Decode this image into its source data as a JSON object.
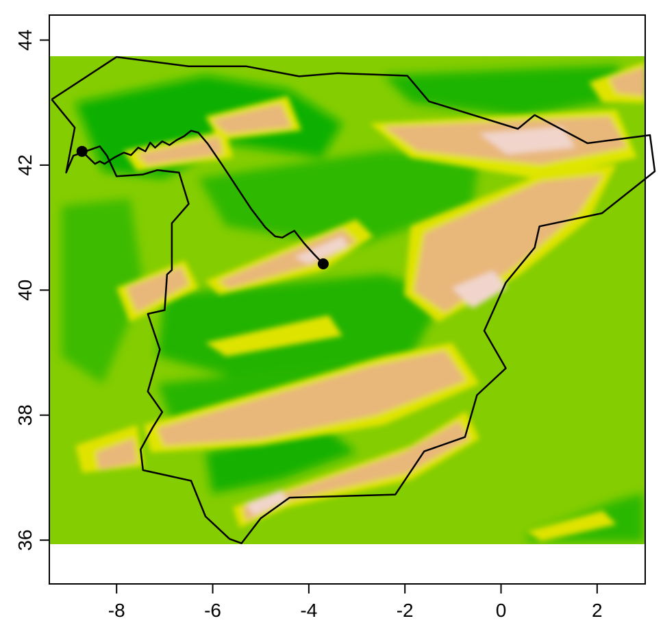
{
  "map": {
    "type": "raster-elevation-map",
    "colormap": "terrain",
    "colors": {
      "low_green": "#00a600",
      "mid_green": "#7cc600",
      "yellow": "#e6e600",
      "tan": "#e8b77a",
      "pink": "#f0c9c0",
      "white": "#f2f2f2",
      "sea": "#84cd00",
      "border": "#000000",
      "path": "#000000"
    },
    "x_axis": {
      "ticks": [
        -8,
        -6,
        -4,
        -2,
        0,
        2
      ],
      "tick_labels": [
        "-8",
        "-6",
        "-4",
        "-2",
        "0",
        "2"
      ],
      "range": [
        -9.4,
        3.0
      ]
    },
    "y_axis": {
      "ticks": [
        36,
        38,
        40,
        42,
        44
      ],
      "tick_labels": [
        "36",
        "38",
        "40",
        "42",
        "44"
      ],
      "range": [
        35.3,
        44.4
      ]
    },
    "raster_extent": {
      "lon": [
        -9.4,
        3.0
      ],
      "lat": [
        35.93,
        43.73
      ]
    },
    "points": [
      {
        "lon": -8.72,
        "lat": 42.22
      },
      {
        "lon": -3.7,
        "lat": 40.42
      }
    ],
    "route": [
      [
        -8.72,
        42.22
      ],
      [
        -8.45,
        42.02
      ],
      [
        -8.35,
        42.06
      ],
      [
        -8.25,
        42.02
      ],
      [
        -8.05,
        42.12
      ],
      [
        -7.85,
        42.2
      ],
      [
        -7.7,
        42.16
      ],
      [
        -7.55,
        42.28
      ],
      [
        -7.4,
        42.22
      ],
      [
        -7.3,
        42.36
      ],
      [
        -7.2,
        42.28
      ],
      [
        -7.05,
        42.38
      ],
      [
        -6.9,
        42.32
      ],
      [
        -6.75,
        42.4
      ],
      [
        -6.6,
        42.46
      ],
      [
        -6.45,
        42.55
      ],
      [
        -6.3,
        42.52
      ],
      [
        -6.1,
        42.34
      ],
      [
        -5.8,
        42.0
      ],
      [
        -5.5,
        41.65
      ],
      [
        -5.2,
        41.3
      ],
      [
        -4.9,
        41.0
      ],
      [
        -4.7,
        40.86
      ],
      [
        -4.55,
        40.84
      ],
      [
        -4.42,
        40.9
      ],
      [
        -4.3,
        40.95
      ],
      [
        -4.1,
        40.75
      ],
      [
        -3.9,
        40.58
      ],
      [
        -3.7,
        40.42
      ]
    ],
    "border_spain": [
      [
        -9.35,
        43.05
      ],
      [
        -8.0,
        43.73
      ],
      [
        -6.5,
        43.58
      ],
      [
        -5.3,
        43.58
      ],
      [
        -4.2,
        43.42
      ],
      [
        -3.4,
        43.47
      ],
      [
        -1.95,
        43.43
      ],
      [
        -1.5,
        43.02
      ],
      [
        0.35,
        42.58
      ],
      [
        0.7,
        42.8
      ],
      [
        1.8,
        42.35
      ],
      [
        3.1,
        42.48
      ],
      [
        3.2,
        41.9
      ],
      [
        2.1,
        41.23
      ],
      [
        0.8,
        41.02
      ],
      [
        0.7,
        40.68
      ],
      [
        0.1,
        40.12
      ],
      [
        -0.35,
        39.35
      ],
      [
        0.1,
        38.75
      ],
      [
        -0.5,
        38.32
      ],
      [
        -0.75,
        37.65
      ],
      [
        -1.6,
        37.42
      ],
      [
        -2.2,
        36.73
      ],
      [
        -4.4,
        36.68
      ],
      [
        -5.0,
        36.35
      ],
      [
        -5.4,
        35.95
      ],
      [
        -5.65,
        36.02
      ],
      [
        -6.15,
        36.38
      ],
      [
        -6.45,
        36.95
      ],
      [
        -7.45,
        37.12
      ],
      [
        -7.5,
        37.45
      ],
      [
        -7.25,
        37.8
      ],
      [
        -7.05,
        38.05
      ],
      [
        -7.35,
        38.38
      ],
      [
        -7.1,
        39.05
      ],
      [
        -7.35,
        39.62
      ],
      [
        -7.0,
        39.68
      ],
      [
        -6.95,
        40.25
      ],
      [
        -6.85,
        40.32
      ],
      [
        -6.85,
        41.07
      ],
      [
        -6.5,
        41.38
      ],
      [
        -6.7,
        41.88
      ],
      [
        -7.15,
        41.92
      ],
      [
        -7.45,
        41.85
      ],
      [
        -8.0,
        41.82
      ],
      [
        -8.2,
        42.15
      ],
      [
        -8.35,
        42.3
      ],
      [
        -8.9,
        42.15
      ],
      [
        -9.05,
        41.88
      ],
      [
        -8.87,
        42.6
      ],
      [
        -9.35,
        43.05
      ]
    ]
  }
}
